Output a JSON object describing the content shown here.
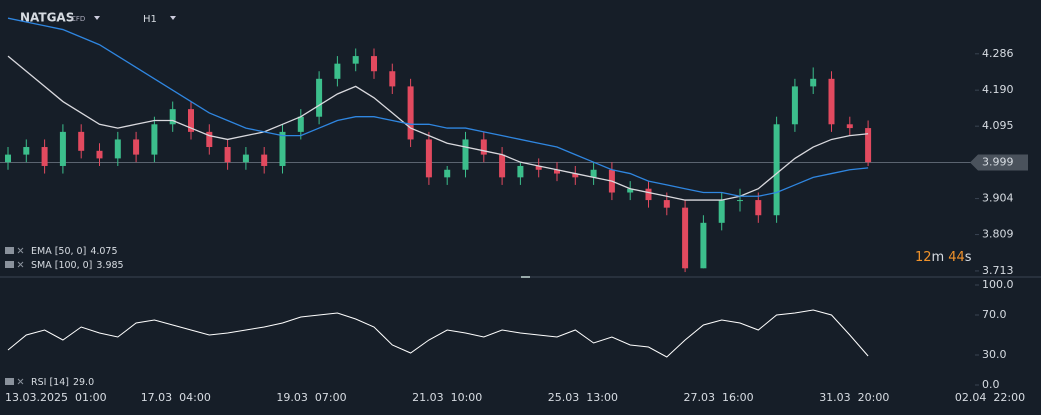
{
  "chart_data": {
    "type": "candlestick",
    "symbol": "NATGAS",
    "symbol_tag": "CFD",
    "timeframe": "H1",
    "open": [
      4.0,
      4.02,
      4.04,
      3.99,
      4.08,
      4.03,
      4.01,
      4.06,
      4.02,
      4.1,
      4.14,
      4.08,
      4.04,
      4.0,
      4.02,
      3.99,
      4.08,
      4.12,
      4.22,
      4.26,
      4.28,
      4.24,
      4.2,
      4.06,
      3.96,
      3.98,
      4.06,
      4.02,
      3.96,
      3.99,
      3.98,
      3.97,
      3.96,
      3.98,
      3.92,
      3.93,
      3.9,
      3.88,
      3.72,
      3.84,
      3.9,
      3.9,
      3.86,
      4.1,
      4.2,
      4.22,
      4.1,
      4.09
    ],
    "high": [
      4.04,
      4.06,
      4.06,
      4.1,
      4.1,
      4.05,
      4.08,
      4.08,
      4.12,
      4.16,
      4.16,
      4.1,
      4.06,
      4.04,
      4.04,
      4.1,
      4.14,
      4.24,
      4.28,
      4.3,
      4.3,
      4.26,
      4.22,
      4.08,
      3.99,
      4.08,
      4.08,
      4.04,
      4.0,
      4.01,
      4.0,
      3.99,
      4.0,
      4.0,
      3.95,
      3.95,
      3.92,
      3.9,
      3.86,
      3.92,
      3.93,
      3.92,
      4.12,
      4.22,
      4.25,
      4.24,
      4.12,
      4.11
    ],
    "low": [
      3.98,
      4.0,
      3.97,
      3.97,
      4.01,
      3.99,
      3.99,
      4.0,
      4.0,
      4.08,
      4.06,
      4.02,
      3.98,
      3.98,
      3.97,
      3.97,
      4.06,
      4.1,
      4.2,
      4.24,
      4.22,
      4.18,
      4.04,
      3.94,
      3.94,
      3.96,
      4.0,
      3.94,
      3.94,
      3.96,
      3.95,
      3.94,
      3.94,
      3.9,
      3.9,
      3.88,
      3.86,
      3.71,
      3.72,
      3.82,
      3.87,
      3.84,
      3.84,
      4.08,
      4.18,
      4.08,
      4.07,
      3.99
    ],
    "close": [
      4.02,
      4.04,
      3.99,
      4.08,
      4.03,
      4.01,
      4.06,
      4.02,
      4.1,
      4.14,
      4.08,
      4.04,
      4.0,
      4.02,
      3.99,
      4.08,
      4.12,
      4.22,
      4.26,
      4.28,
      4.24,
      4.2,
      4.06,
      3.96,
      3.98,
      4.06,
      4.02,
      3.96,
      3.99,
      3.98,
      3.97,
      3.96,
      3.98,
      3.92,
      3.93,
      3.9,
      3.88,
      3.72,
      3.84,
      3.9,
      3.9,
      3.86,
      4.1,
      4.2,
      4.22,
      4.1,
      4.09,
      4.0
    ],
    "up_color": "#3cbf8c",
    "down_color": "#e24a5f",
    "series": [
      {
        "name": "EMA [50, 0]",
        "last": 4.075,
        "color": "#d9d9de",
        "values": [
          4.28,
          4.24,
          4.2,
          4.16,
          4.13,
          4.1,
          4.09,
          4.1,
          4.11,
          4.11,
          4.09,
          4.07,
          4.06,
          4.07,
          4.08,
          4.1,
          4.12,
          4.15,
          4.18,
          4.2,
          4.17,
          4.13,
          4.09,
          4.07,
          4.05,
          4.04,
          4.03,
          4.02,
          4.0,
          3.99,
          3.98,
          3.97,
          3.96,
          3.95,
          3.93,
          3.92,
          3.91,
          3.9,
          3.9,
          3.9,
          3.91,
          3.93,
          3.97,
          4.01,
          4.04,
          4.06,
          4.07,
          4.075
        ]
      },
      {
        "name": "SMA [100, 0]",
        "last": 3.985,
        "color": "#2f86e0",
        "values": [
          4.38,
          4.37,
          4.36,
          4.35,
          4.33,
          4.31,
          4.28,
          4.25,
          4.22,
          4.19,
          4.16,
          4.13,
          4.11,
          4.09,
          4.08,
          4.07,
          4.07,
          4.09,
          4.11,
          4.12,
          4.12,
          4.11,
          4.1,
          4.1,
          4.09,
          4.09,
          4.08,
          4.07,
          4.06,
          4.05,
          4.04,
          4.02,
          4.0,
          3.98,
          3.97,
          3.95,
          3.94,
          3.93,
          3.92,
          3.92,
          3.91,
          3.91,
          3.92,
          3.94,
          3.96,
          3.97,
          3.98,
          3.985
        ]
      }
    ],
    "ylim": [
      3.697,
      4.428
    ],
    "yticks": [
      4.286,
      {
        "value": 4.19,
        "label": "4.190"
      },
      4.095,
      3.904,
      3.809,
      3.713
    ],
    "last_price": 3.999,
    "countdown": [
      "12",
      "m",
      "44",
      "s"
    ],
    "rsi": {
      "name": "RSI [14]",
      "last": 29,
      "last_label": "29.0",
      "color": "#ffffff",
      "values": [
        35,
        50,
        55,
        45,
        58,
        52,
        48,
        62,
        65,
        60,
        55,
        50,
        52,
        55,
        58,
        62,
        68,
        70,
        72,
        66,
        58,
        40,
        32,
        45,
        55,
        52,
        48,
        55,
        52,
        50,
        48,
        55,
        42,
        48,
        40,
        38,
        28,
        45,
        60,
        65,
        62,
        55,
        70,
        72,
        75,
        70,
        50,
        29
      ],
      "ylim": [
        0,
        100
      ],
      "yticks": [
        {
          "value": 100,
          "label": "100.0"
        },
        {
          "value": 70,
          "label": "70.0"
        },
        {
          "value": 30,
          "label": "30.0"
        },
        {
          "value": 0,
          "label": "0.0"
        }
      ]
    },
    "xticks": [
      "13.03.2025  01:00",
      "17.03  04:00",
      "19.03  07:00",
      "21.03  10:00",
      "25.03  13:00",
      "27.03  16:00",
      "31.03  20:00",
      "02.04  22:00"
    ]
  }
}
